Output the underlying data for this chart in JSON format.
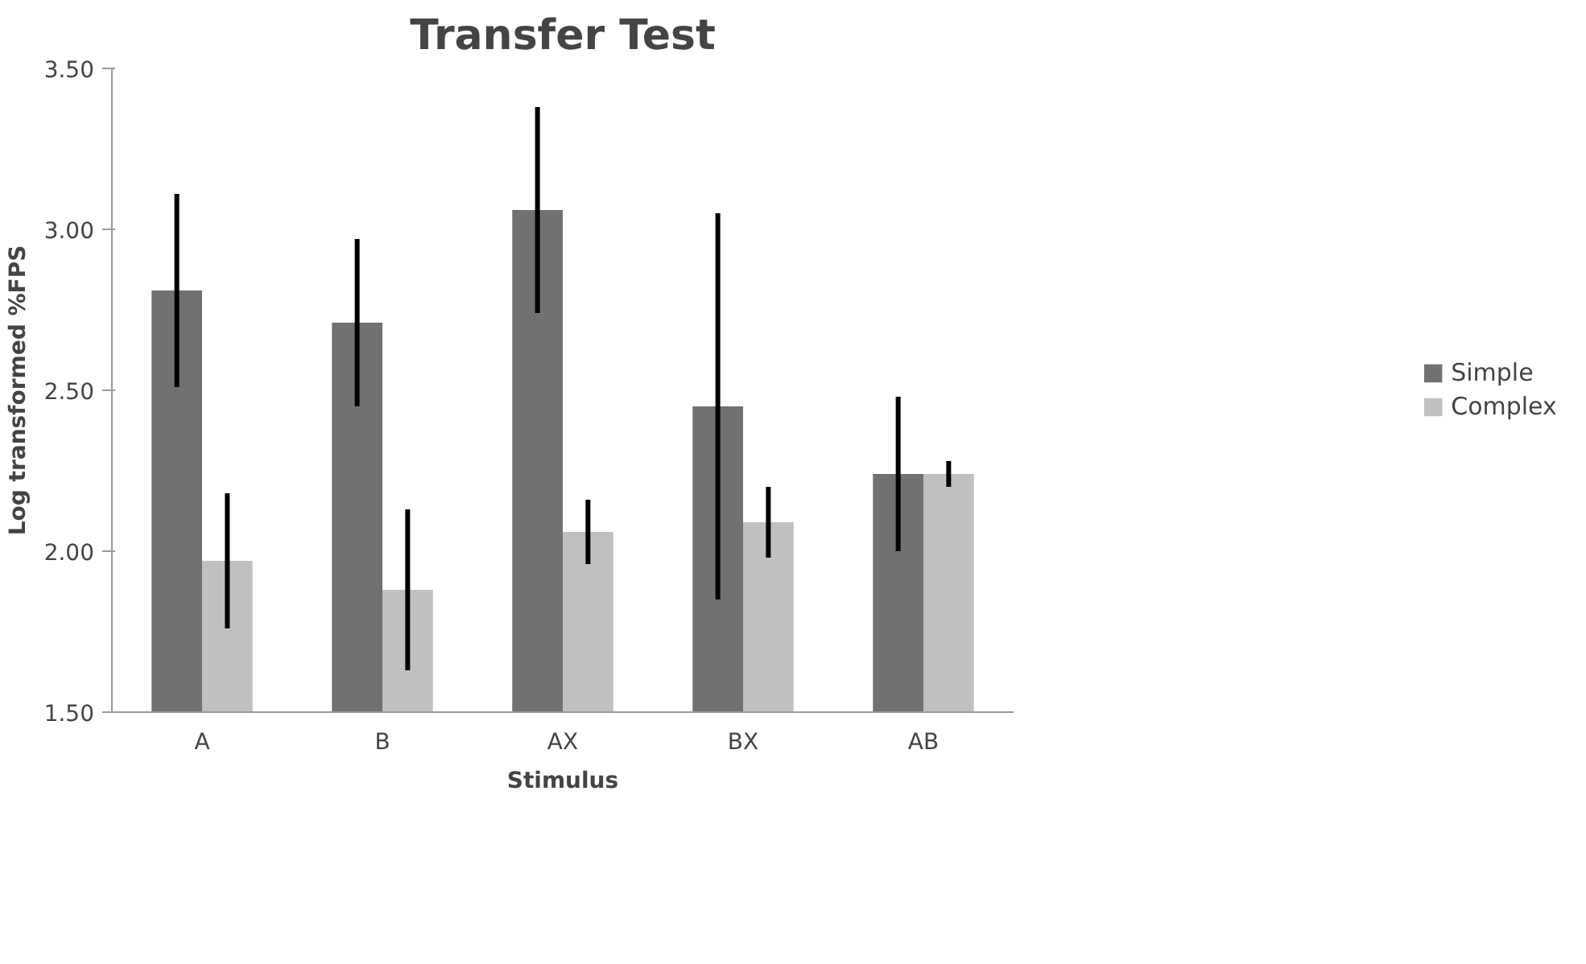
{
  "chart_data": {
    "type": "bar",
    "title": "Transfer Test",
    "xlabel": "Stimulus",
    "ylabel": "Log transformed %FPS",
    "categories": [
      "A",
      "B",
      "AX",
      "BX",
      "AB"
    ],
    "series": [
      {
        "name": "Simple",
        "color": "#717171",
        "values": [
          2.81,
          2.71,
          3.06,
          2.45,
          2.24
        ],
        "errors": [
          0.3,
          0.26,
          0.32,
          0.6,
          0.24
        ]
      },
      {
        "name": "Complex",
        "color": "#c0c0c0",
        "values": [
          1.97,
          1.88,
          2.06,
          2.09,
          2.24
        ],
        "errors": [
          0.21,
          0.25,
          0.1,
          0.11,
          0.04
        ]
      }
    ],
    "ylim": [
      1.5,
      3.5
    ],
    "yticks": [
      {
        "value": 1.5,
        "label": "1.50"
      },
      {
        "value": 2.0,
        "label": "2.00"
      },
      {
        "value": 2.5,
        "label": "2.50"
      },
      {
        "value": 3.0,
        "label": "3.00"
      },
      {
        "value": 3.5,
        "label": "3.50"
      }
    ],
    "grid": false,
    "legend": "right"
  }
}
